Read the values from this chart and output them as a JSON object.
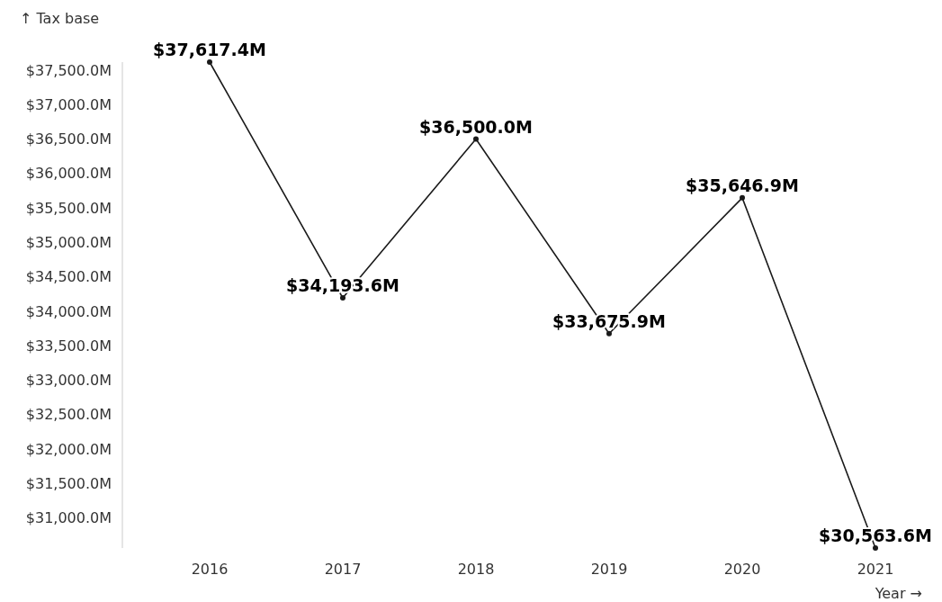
{
  "chart_data": {
    "type": "line",
    "xlabel": "Year →",
    "ylabel": "↑ Tax base",
    "categories": [
      "2016",
      "2017",
      "2018",
      "2019",
      "2020",
      "2021"
    ],
    "series": [
      {
        "color": "#1a1a1a",
        "values": [
          37617.4,
          34193.6,
          36500.0,
          33675.9,
          35646.9,
          30563.6
        ],
        "value_labels": [
          "$37,617.4M",
          "$34,193.6M",
          "$36,500.0M",
          "$33,675.9M",
          "$35,646.9M",
          "$30,563.6M"
        ]
      }
    ],
    "ylim": [
      30563.6,
      37617.4
    ],
    "yticks": [
      {
        "value": 31000,
        "label": "$31,000.0M"
      },
      {
        "value": 31500,
        "label": "$31,500.0M"
      },
      {
        "value": 32000,
        "label": "$32,000.0M"
      },
      {
        "value": 32500,
        "label": "$32,500.0M"
      },
      {
        "value": 33000,
        "label": "$33,000.0M"
      },
      {
        "value": 33500,
        "label": "$33,500.0M"
      },
      {
        "value": 34000,
        "label": "$34,000.0M"
      },
      {
        "value": 34500,
        "label": "$34,500.0M"
      },
      {
        "value": 35000,
        "label": "$35,000.0M"
      },
      {
        "value": 35500,
        "label": "$35,500.0M"
      },
      {
        "value": 36000,
        "label": "$36,000.0M"
      },
      {
        "value": 36500,
        "label": "$36,500.0M"
      },
      {
        "value": 37000,
        "label": "$37,000.0M"
      },
      {
        "value": 37500,
        "label": "$37,500.0M"
      }
    ],
    "marker": "circle",
    "line_style": "solid",
    "grid": false
  }
}
